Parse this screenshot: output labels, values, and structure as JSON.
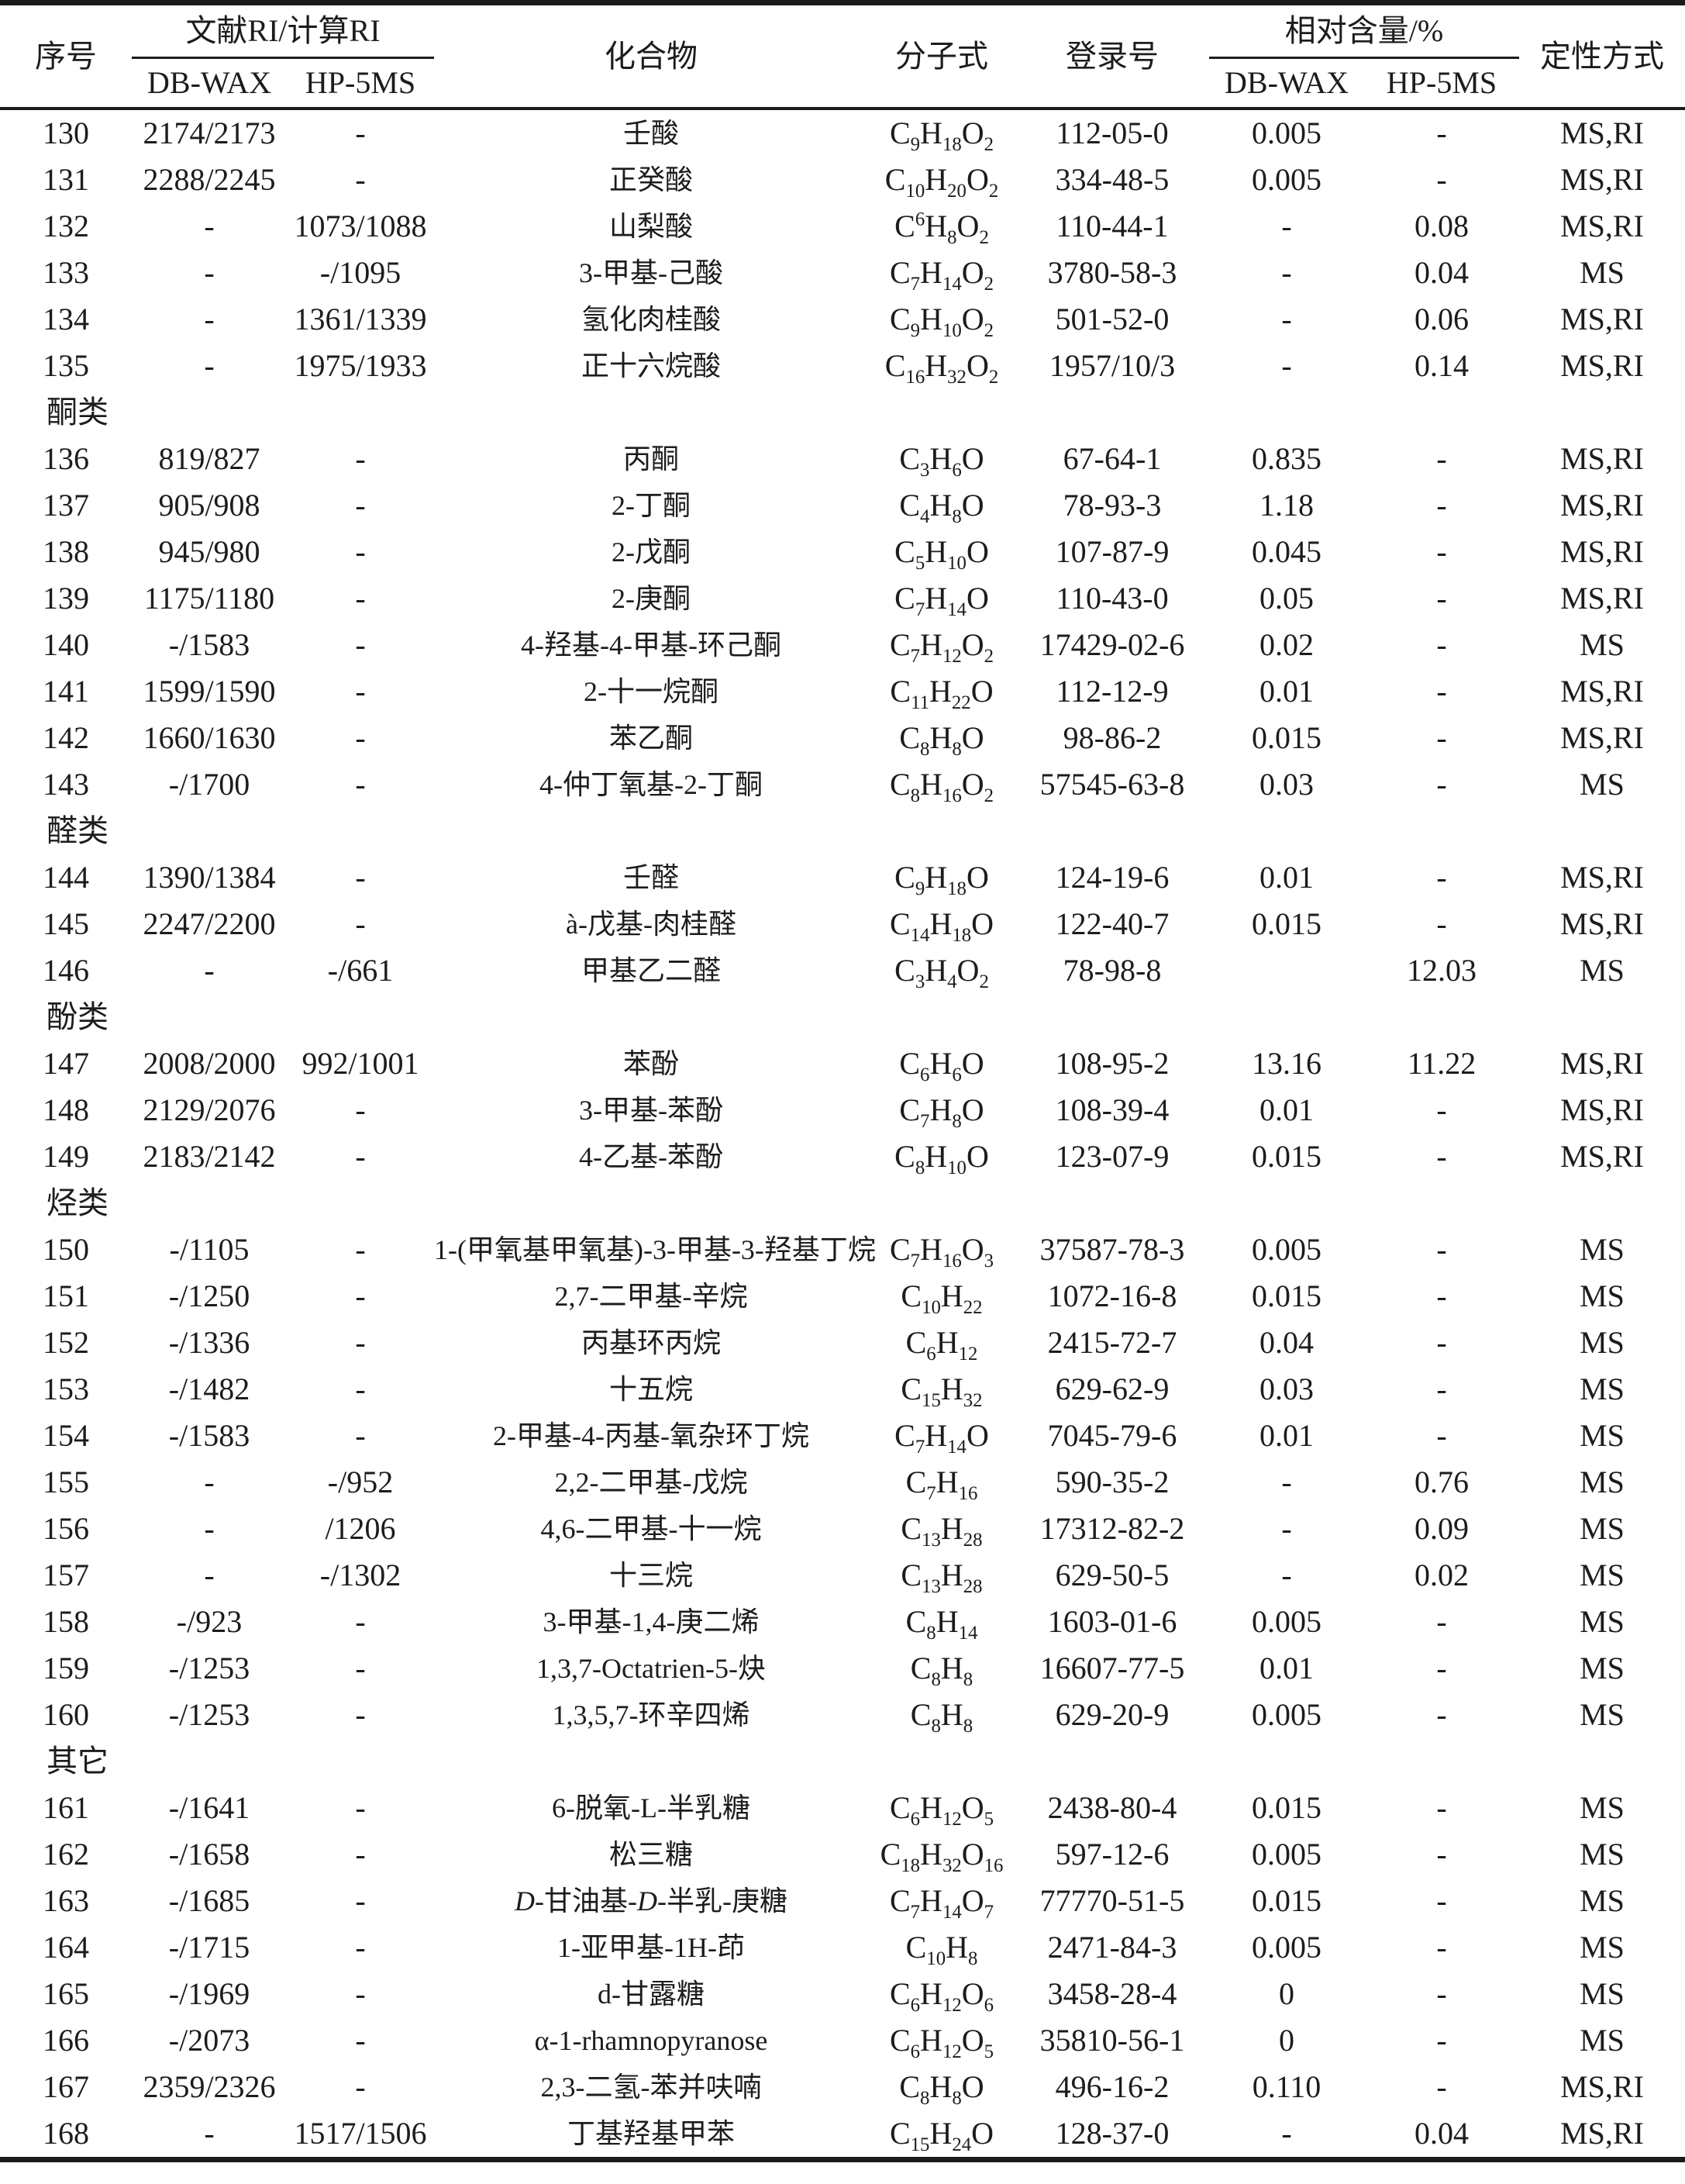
{
  "table": {
    "header": {
      "no": "序号",
      "ri_group": "文献RI/计算RI",
      "ri_sub": [
        "DB-WAX",
        "HP-5MS"
      ],
      "compound": "化合物",
      "formula": "分子式",
      "cas": "登录号",
      "rc_group": "相对含量/%",
      "rc_sub": [
        "DB-WAX",
        "HP-5MS"
      ],
      "method": "定性方式"
    },
    "rows": [
      {
        "no": "130",
        "ri1": "2174/2173",
        "ri2": "-",
        "name": "壬酸",
        "formula": "C_9_H_18_O_2_",
        "cas": "112-05-0",
        "rc1": "0.005",
        "rc2": "-",
        "method": "MS,RI"
      },
      {
        "no": "131",
        "ri1": "2288/2245",
        "ri2": "-",
        "name": "正癸酸",
        "formula": "C_10_H_20_O_2_",
        "cas": "334-48-5",
        "rc1": "0.005",
        "rc2": "-",
        "method": "MS,RI"
      },
      {
        "no": "132",
        "ri1": "-",
        "ri2": "1073/1088",
        "name": "山梨酸",
        "formula": "C^6^H_8_O_2_",
        "cas": "110-44-1",
        "rc1": "-",
        "rc2": "0.08",
        "method": "MS,RI"
      },
      {
        "no": "133",
        "ri1": "-",
        "ri2": "-/1095",
        "name": "3-甲基-己酸",
        "formula": "C_7_H_14_O_2_",
        "cas": "3780-58-3",
        "rc1": "-",
        "rc2": "0.04",
        "method": "MS"
      },
      {
        "no": "134",
        "ri1": "-",
        "ri2": "1361/1339",
        "name": "氢化肉桂酸",
        "formula": "C_9_H_10_O_2_",
        "cas": "501-52-0",
        "rc1": "-",
        "rc2": "0.06",
        "method": "MS,RI"
      },
      {
        "no": "135",
        "ri1": "-",
        "ri2": "1975/1933",
        "name": "正十六烷酸",
        "formula": "C_16_H_32_O_2_",
        "cas": "1957/10/3",
        "rc1": "-",
        "rc2": "0.14",
        "method": "MS,RI"
      },
      {
        "section": "酮类"
      },
      {
        "no": "136",
        "ri1": "819/827",
        "ri2": "-",
        "name": "丙酮",
        "formula": "C_3_H_6_O",
        "cas": "67-64-1",
        "rc1": "0.835",
        "rc2": "-",
        "method": "MS,RI"
      },
      {
        "no": "137",
        "ri1": "905/908",
        "ri2": "-",
        "name": "2-丁酮",
        "formula": "C_4_H_8_O",
        "cas": "78-93-3",
        "rc1": "1.18",
        "rc2": "-",
        "method": "MS,RI"
      },
      {
        "no": "138",
        "ri1": "945/980",
        "ri2": "-",
        "name": "2-戊酮",
        "formula": "C_5_H_10_O",
        "cas": "107-87-9",
        "rc1": "0.045",
        "rc2": "-",
        "method": "MS,RI"
      },
      {
        "no": "139",
        "ri1": "1175/1180",
        "ri2": "-",
        "name": "2-庚酮",
        "formula": "C_7_H_14_O",
        "cas": "110-43-0",
        "rc1": "0.05",
        "rc2": "-",
        "method": "MS,RI"
      },
      {
        "no": "140",
        "ri1": "-/1583",
        "ri2": "-",
        "name": "4-羟基-4-甲基-环己酮",
        "formula": "C_7_H_12_O_2_",
        "cas": "17429-02-6",
        "rc1": "0.02",
        "rc2": "-",
        "method": "MS"
      },
      {
        "no": "141",
        "ri1": "1599/1590",
        "ri2": "-",
        "name": "2-十一烷酮",
        "formula": "C_11_H_22_O",
        "cas": "112-12-9",
        "rc1": "0.01",
        "rc2": "-",
        "method": "MS,RI"
      },
      {
        "no": "142",
        "ri1": "1660/1630",
        "ri2": "-",
        "name": "苯乙酮",
        "formula": "C_8_H_8_O",
        "cas": "98-86-2",
        "rc1": "0.015",
        "rc2": "-",
        "method": "MS,RI"
      },
      {
        "no": "143",
        "ri1": "-/1700",
        "ri2": "-",
        "name": "4-仲丁氧基-2-丁酮",
        "formula": "C_8_H_16_O_2_",
        "cas": "57545-63-8",
        "rc1": "0.03",
        "rc2": "-",
        "method": "MS"
      },
      {
        "section": "醛类"
      },
      {
        "no": "144",
        "ri1": "1390/1384",
        "ri2": "-",
        "name": "壬醛",
        "formula": "C_9_H_18_O",
        "cas": "124-19-6",
        "rc1": "0.01",
        "rc2": "-",
        "method": "MS,RI"
      },
      {
        "no": "145",
        "ri1": "2247/2200",
        "ri2": "-",
        "name": "à-戊基-肉桂醛",
        "formula": "C_14_H_18_O",
        "cas": "122-40-7",
        "rc1": "0.015",
        "rc2": "-",
        "method": "MS,RI"
      },
      {
        "no": "146",
        "ri1": "-",
        "ri2": "-/661",
        "name": "甲基乙二醛",
        "formula": "C_3_H_4_O_2_",
        "cas": "78-98-8",
        "rc1": "",
        "rc2": "12.03",
        "method": "MS"
      },
      {
        "section": "酚类"
      },
      {
        "no": "147",
        "ri1": "2008/2000",
        "ri2": "992/1001",
        "name": "苯酚",
        "formula": "C_6_H_6_O",
        "cas": "108-95-2",
        "rc1": "13.16",
        "rc2": "11.22",
        "method": "MS,RI"
      },
      {
        "no": "148",
        "ri1": "2129/2076",
        "ri2": "-",
        "name": "3-甲基-苯酚",
        "formula": "C_7_H_8_O",
        "cas": "108-39-4",
        "rc1": "0.01",
        "rc2": "-",
        "method": "MS,RI"
      },
      {
        "no": "149",
        "ri1": "2183/2142",
        "ri2": "-",
        "name": "4-乙基-苯酚",
        "formula": "C_8_H_10_O",
        "cas": "123-07-9",
        "rc1": "0.015",
        "rc2": "-",
        "method": "MS,RI"
      },
      {
        "section": "烃类"
      },
      {
        "no": "150",
        "ri1": "-/1105",
        "ri2": "-",
        "name": "1-(甲氧基甲氧基)-3-甲基-3-羟基丁烷",
        "formula": "C_7_H_16_O_3_",
        "cas": "37587-78-3",
        "rc1": "0.005",
        "rc2": "-",
        "method": "MS"
      },
      {
        "no": "151",
        "ri1": "-/1250",
        "ri2": "-",
        "name": "2,7-二甲基-辛烷",
        "formula": "C_10_H_22_",
        "cas": "1072-16-8",
        "rc1": "0.015",
        "rc2": "-",
        "method": "MS"
      },
      {
        "no": "152",
        "ri1": "-/1336",
        "ri2": "-",
        "name": "丙基环丙烷",
        "formula": "C_6_H_12_",
        "cas": "2415-72-7",
        "rc1": "0.04",
        "rc2": "-",
        "method": "MS"
      },
      {
        "no": "153",
        "ri1": "-/1482",
        "ri2": "-",
        "name": "十五烷",
        "formula": "C_15_H_32_",
        "cas": "629-62-9",
        "rc1": "0.03",
        "rc2": "-",
        "method": "MS"
      },
      {
        "no": "154",
        "ri1": "-/1583",
        "ri2": "-",
        "name": "2-甲基-4-丙基-氧杂环丁烷",
        "formula": "C_7_H_14_O",
        "cas": "7045-79-6",
        "rc1": "0.01",
        "rc2": "-",
        "method": "MS"
      },
      {
        "no": "155",
        "ri1": "-",
        "ri2": "-/952",
        "name": "2,2-二甲基-戊烷",
        "formula": "C_7_H_16_",
        "cas": "590-35-2",
        "rc1": "-",
        "rc2": "0.76",
        "method": "MS"
      },
      {
        "no": "156",
        "ri1": "-",
        "ri2": "/1206",
        "name": "4,6-二甲基-十一烷",
        "formula": "C_13_H_28_",
        "cas": "17312-82-2",
        "rc1": "-",
        "rc2": "0.09",
        "method": "MS"
      },
      {
        "no": "157",
        "ri1": "-",
        "ri2": "-/1302",
        "name": "十三烷",
        "formula": "C_13_H_28_",
        "cas": "629-50-5",
        "rc1": "-",
        "rc2": "0.02",
        "method": "MS"
      },
      {
        "no": "158",
        "ri1": "-/923",
        "ri2": "-",
        "name": "3-甲基-1,4-庚二烯",
        "formula": "C_8_H_14_",
        "cas": "1603-01-6",
        "rc1": "0.005",
        "rc2": "-",
        "method": "MS"
      },
      {
        "no": "159",
        "ri1": "-/1253",
        "ri2": "-",
        "name": "1,3,7-Octatrien-5-炔",
        "formula": "C_8_H_8_",
        "cas": "16607-77-5",
        "rc1": "0.01",
        "rc2": "-",
        "method": "MS"
      },
      {
        "no": "160",
        "ri1": "-/1253",
        "ri2": "-",
        "name": "1,3,5,7-环辛四烯",
        "formula": "C_8_H_8_",
        "cas": "629-20-9",
        "rc1": "0.005",
        "rc2": "-",
        "method": "MS"
      },
      {
        "section": "其它"
      },
      {
        "no": "161",
        "ri1": "-/1641",
        "ri2": "-",
        "name": "6-脱氧-L-半乳糖",
        "formula": "C_6_H_12_O_5_",
        "cas": "2438-80-4",
        "rc1": "0.015",
        "rc2": "-",
        "method": "MS"
      },
      {
        "no": "162",
        "ri1": "-/1658",
        "ri2": "-",
        "name": "松三糖",
        "formula": "C_18_H_32_O_16_",
        "cas": "597-12-6",
        "rc1": "0.005",
        "rc2": "-",
        "method": "MS"
      },
      {
        "no": "163",
        "ri1": "-/1685",
        "ri2": "-",
        "name": "*D*-甘油基-*D*-半乳-庚糖",
        "formula": "C_7_H_14_O_7_",
        "cas": "77770-51-5",
        "rc1": "0.015",
        "rc2": "-",
        "method": "MS"
      },
      {
        "no": "164",
        "ri1": "-/1715",
        "ri2": "-",
        "name": "1-亚甲基-1H-茚",
        "formula": "C_10_H_8_",
        "cas": "2471-84-3",
        "rc1": "0.005",
        "rc2": "-",
        "method": "MS"
      },
      {
        "no": "165",
        "ri1": "-/1969",
        "ri2": "-",
        "name": "d-甘露糖",
        "formula": "C_6_H_12_O_6_",
        "cas": "3458-28-4",
        "rc1": "0",
        "rc2": "-",
        "method": "MS"
      },
      {
        "no": "166",
        "ri1": "-/2073",
        "ri2": "-",
        "name": "α-1-rhamnopyranose",
        "formula": "C_6_H_12_O_5_",
        "cas": "35810-56-1",
        "rc1": "0",
        "rc2": "-",
        "method": "MS"
      },
      {
        "no": "167",
        "ri1": "2359/2326",
        "ri2": "-",
        "name": "2,3-二氢-苯并呋喃",
        "formula": "C_8_H_8_O",
        "cas": "496-16-2",
        "rc1": "0.110",
        "rc2": "-",
        "method": "MS,RI"
      },
      {
        "no": "168",
        "ri1": "-",
        "ri2": "1517/1506",
        "name": "丁基羟基甲苯",
        "formula": "C_15_H_24_O",
        "cas": "128-37-0",
        "rc1": "-",
        "rc2": "0.04",
        "method": "MS,RI"
      }
    ]
  },
  "colors": {
    "text": "#1c1c1c",
    "rule": "#1b1b1b",
    "background": "#ffffff"
  }
}
